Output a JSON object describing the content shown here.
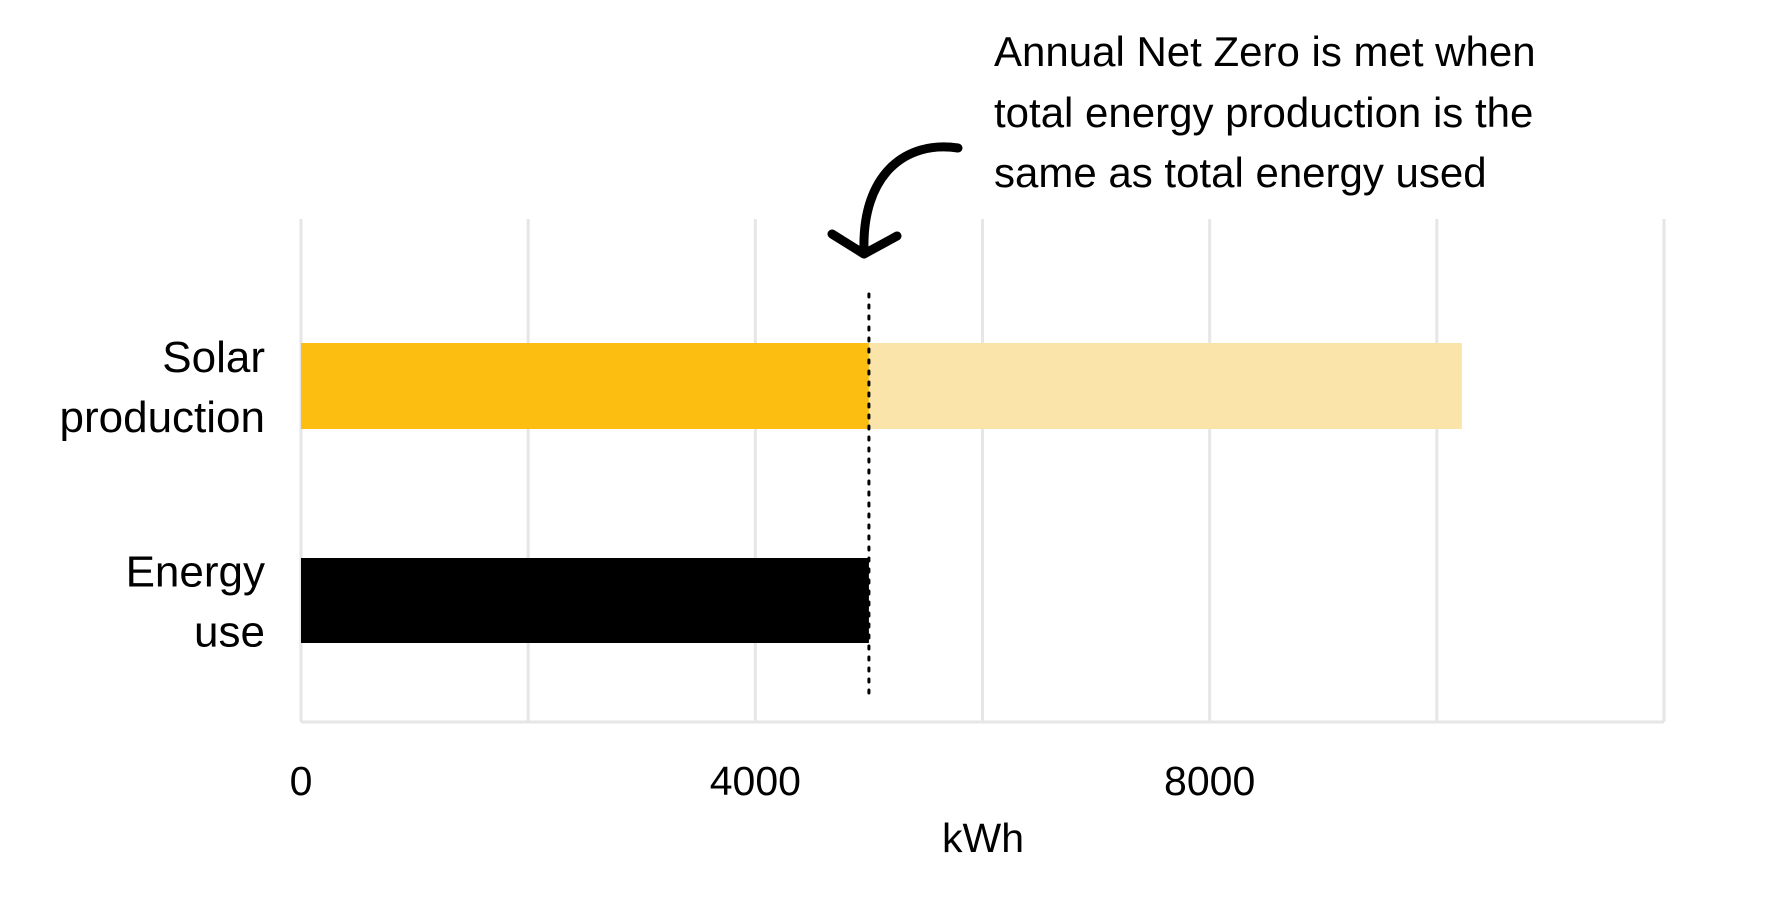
{
  "chart_data": {
    "type": "bar",
    "orientation": "horizontal",
    "categories": [
      "Solar production",
      "Energy use"
    ],
    "category_label_lines": [
      [
        "Solar",
        "production"
      ],
      [
        "Energy",
        "use"
      ]
    ],
    "series": [
      {
        "values": [
          5000,
          5000
        ],
        "colors": [
          "#FDBE12",
          "#000000"
        ]
      },
      {
        "values": [
          5220,
          0
        ],
        "colors": [
          "#FAE4A9",
          "#000000"
        ]
      }
    ],
    "totals": [
      10220,
      5000
    ],
    "xlabel": "kWh",
    "xlim": [
      0,
      12000
    ],
    "x_gridlines": [
      0,
      2000,
      4000,
      6000,
      8000,
      10000,
      12000
    ],
    "x_ticks": [
      0,
      4000,
      8000
    ],
    "x_tick_labels": [
      "0",
      "4000",
      "8000"
    ],
    "grid": true,
    "reference_line": {
      "value": 5000,
      "style": "dotted"
    },
    "annotation": {
      "lines": [
        "Annual Net Zero is met when",
        "total energy production is the",
        "same as total energy used"
      ],
      "arrow": "curved-arrow-down"
    }
  }
}
